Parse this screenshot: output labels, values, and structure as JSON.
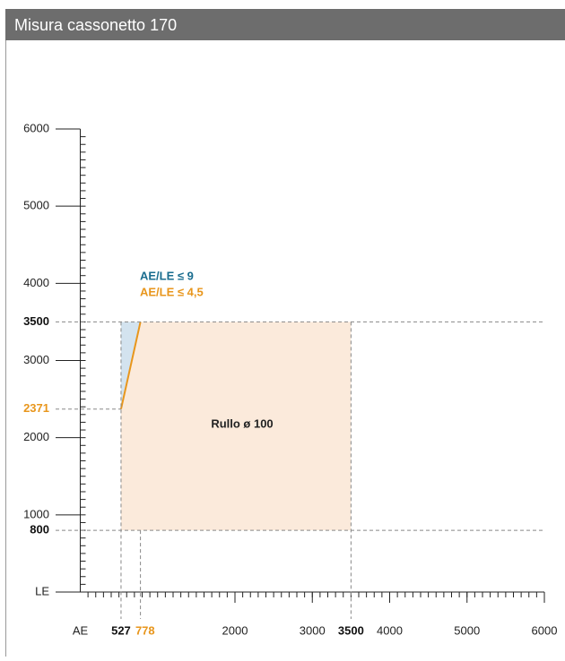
{
  "chart_data": {
    "type": "region",
    "title": "Misura cassonetto 170",
    "x_label": "AE",
    "y_label": "LE",
    "xlim": [
      0,
      6000
    ],
    "ylim": [
      0,
      6000
    ],
    "xticks": [
      2000,
      3000,
      4000,
      5000,
      6000
    ],
    "yticks": [
      1000,
      2000,
      3000,
      4000,
      5000,
      6000
    ],
    "minor_tick_step": 100,
    "xmarks": [
      527,
      778,
      3500
    ],
    "xmark_colors": [
      "#111111",
      "#e8961c",
      "#111111"
    ],
    "ymarks": [
      3500,
      2371,
      800
    ],
    "ymark_colors": [
      "#111111",
      "#e8961c",
      "#111111"
    ],
    "region": {
      "label": "Rullo ø 100",
      "color": "#fbeadb",
      "x": [
        527,
        3500
      ],
      "y": [
        800,
        3500
      ]
    },
    "series": [
      {
        "name": "AE/LE ≤ 9",
        "color": "#1a6d8f",
        "fill": "#d3e3ef",
        "x": [
          527,
          778,
          527
        ],
        "values": [
          3500,
          3500,
          2371
        ]
      },
      {
        "name": "AE/LE ≤ 4,5",
        "color": "#e8961c",
        "x": [
          527,
          778
        ],
        "values": [
          2371,
          3500
        ]
      }
    ]
  }
}
